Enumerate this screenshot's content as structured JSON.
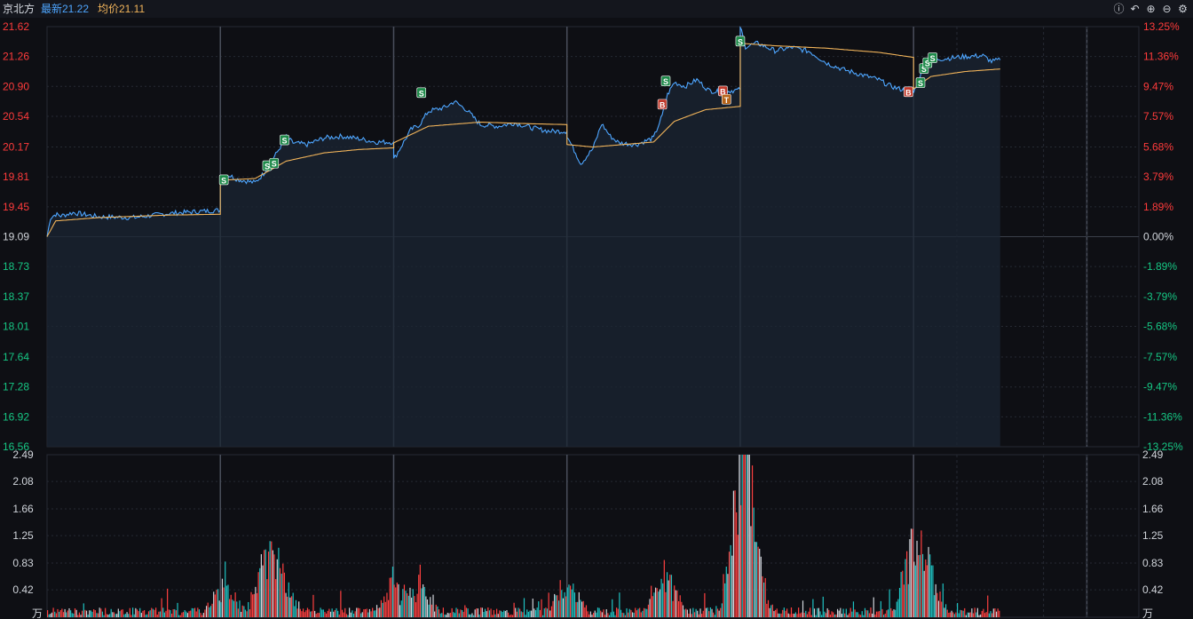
{
  "header": {
    "stock_name": "京北方",
    "latest_label": "最新21.22",
    "avg_label": "均价21.11"
  },
  "toolbar": [
    {
      "name": "info-icon",
      "glyph": "ⓘ"
    },
    {
      "name": "undo-icon",
      "glyph": "↶"
    },
    {
      "name": "zoom-in-icon",
      "glyph": "⊕"
    },
    {
      "name": "zoom-out-icon",
      "glyph": "⊖"
    },
    {
      "name": "gear-icon",
      "glyph": "⚙"
    }
  ],
  "colors": {
    "price_line": "#4ea6ff",
    "avg_line": "#f0b35a",
    "up": "#ff3b3b",
    "down": "#16c784",
    "flat": "#d0d4da",
    "volume_up": "#ff4040",
    "volume_down": "#1fc2c2",
    "grid": "#262a33",
    "buy_marker": "#c0392b",
    "sell_marker": "#1e8a4a",
    "t_marker": "#b5641a"
  },
  "chart_data": {
    "type": "line",
    "reference_price": 19.09,
    "price_axis": {
      "ylim": [
        16.56,
        21.62
      ],
      "ticks": [
        21.62,
        21.26,
        20.9,
        20.54,
        20.17,
        19.81,
        19.45,
        19.09,
        18.73,
        18.37,
        18.01,
        17.64,
        17.28,
        16.92,
        16.56
      ],
      "tick_labels": [
        "21.62",
        "21.26",
        "20.90",
        "20.54",
        "20.17",
        "19.81",
        "19.45",
        "19.09",
        "18.73",
        "18.37",
        "18.01",
        "17.64",
        "17.28",
        "16.92",
        "16.56"
      ]
    },
    "pct_axis": {
      "tick_labels": [
        "13.25%",
        "11.36%",
        "9.47%",
        "7.57%",
        "5.68%",
        "3.79%",
        "1.89%",
        "0.00%",
        "-1.89%",
        "-3.79%",
        "-5.68%",
        "-7.57%",
        "-9.47%",
        "-11.36%",
        "-13.25%"
      ]
    },
    "volume_axis": {
      "ylim": [
        0,
        2.49
      ],
      "ticks": [
        2.49,
        2.08,
        1.66,
        1.25,
        0.83,
        0.42
      ],
      "tick_labels": [
        "2.49",
        "2.08",
        "1.66",
        "1.25",
        "0.83",
        "0.42"
      ],
      "unit_label": "万"
    },
    "days": 6,
    "total_days_slots": 6.3,
    "series": [
      {
        "name": "price",
        "points": [
          [
            0.0,
            19.09
          ],
          [
            0.02,
            19.32
          ],
          [
            0.05,
            19.36
          ],
          [
            0.08,
            19.34
          ],
          [
            0.15,
            19.38
          ],
          [
            0.3,
            19.33
          ],
          [
            0.5,
            19.32
          ],
          [
            0.7,
            19.37
          ],
          [
            0.85,
            19.39
          ],
          [
            1.0,
            19.41
          ],
          [
            1.0,
            19.75
          ],
          [
            1.05,
            19.83
          ],
          [
            1.1,
            19.78
          ],
          [
            1.2,
            19.74
          ],
          [
            1.25,
            19.85
          ],
          [
            1.28,
            19.96
          ],
          [
            1.32,
            20.08
          ],
          [
            1.38,
            20.29
          ],
          [
            1.42,
            20.22
          ],
          [
            1.5,
            20.2
          ],
          [
            1.6,
            20.28
          ],
          [
            1.7,
            20.3
          ],
          [
            1.8,
            20.27
          ],
          [
            1.9,
            20.23
          ],
          [
            2.0,
            20.23
          ],
          [
            2.0,
            20.02
          ],
          [
            2.05,
            20.2
          ],
          [
            2.1,
            20.38
          ],
          [
            2.15,
            20.44
          ],
          [
            2.2,
            20.6
          ],
          [
            2.3,
            20.65
          ],
          [
            2.35,
            20.72
          ],
          [
            2.42,
            20.62
          ],
          [
            2.5,
            20.44
          ],
          [
            2.6,
            20.42
          ],
          [
            2.7,
            20.46
          ],
          [
            2.8,
            20.4
          ],
          [
            2.9,
            20.36
          ],
          [
            3.0,
            20.36
          ],
          [
            3.0,
            20.3
          ],
          [
            3.05,
            20.1
          ],
          [
            3.08,
            19.97
          ],
          [
            3.15,
            20.15
          ],
          [
            3.2,
            20.45
          ],
          [
            3.25,
            20.3
          ],
          [
            3.3,
            20.22
          ],
          [
            3.4,
            20.2
          ],
          [
            3.5,
            20.28
          ],
          [
            3.55,
            20.55
          ],
          [
            3.58,
            20.8
          ],
          [
            3.62,
            20.95
          ],
          [
            3.68,
            20.9
          ],
          [
            3.75,
            20.98
          ],
          [
            3.82,
            20.85
          ],
          [
            3.9,
            20.83
          ],
          [
            3.95,
            20.85
          ],
          [
            4.0,
            20.86
          ],
          [
            4.0,
            21.62
          ],
          [
            4.03,
            21.38
          ],
          [
            4.1,
            21.42
          ],
          [
            4.2,
            21.33
          ],
          [
            4.3,
            21.37
          ],
          [
            4.4,
            21.32
          ],
          [
            4.5,
            21.18
          ],
          [
            4.6,
            21.1
          ],
          [
            4.7,
            21.04
          ],
          [
            4.8,
            20.98
          ],
          [
            4.85,
            20.92
          ],
          [
            4.9,
            20.88
          ],
          [
            4.98,
            20.84
          ],
          [
            5.0,
            20.84
          ],
          [
            5.0,
            20.82
          ],
          [
            5.03,
            21.0
          ],
          [
            5.07,
            21.18
          ],
          [
            5.1,
            21.22
          ],
          [
            5.2,
            21.24
          ],
          [
            5.3,
            21.26
          ],
          [
            5.4,
            21.27
          ],
          [
            5.45,
            21.2
          ],
          [
            5.5,
            21.22
          ]
        ]
      },
      {
        "name": "avg",
        "points": [
          [
            0.0,
            19.09
          ],
          [
            0.05,
            19.28
          ],
          [
            0.3,
            19.32
          ],
          [
            0.7,
            19.35
          ],
          [
            1.0,
            19.36
          ],
          [
            1.0,
            19.77
          ],
          [
            1.2,
            19.79
          ],
          [
            1.38,
            20.0
          ],
          [
            1.6,
            20.1
          ],
          [
            1.8,
            20.14
          ],
          [
            2.0,
            20.16
          ],
          [
            2.0,
            20.22
          ],
          [
            2.2,
            20.42
          ],
          [
            2.5,
            20.47
          ],
          [
            2.8,
            20.45
          ],
          [
            3.0,
            20.44
          ],
          [
            3.0,
            20.2
          ],
          [
            3.15,
            20.17
          ],
          [
            3.5,
            20.23
          ],
          [
            3.62,
            20.48
          ],
          [
            3.8,
            20.62
          ],
          [
            4.0,
            20.66
          ],
          [
            4.0,
            21.42
          ],
          [
            4.2,
            21.39
          ],
          [
            4.5,
            21.36
          ],
          [
            4.8,
            21.31
          ],
          [
            5.0,
            21.25
          ],
          [
            5.0,
            20.87
          ],
          [
            5.1,
            21.02
          ],
          [
            5.3,
            21.08
          ],
          [
            5.5,
            21.11
          ]
        ]
      }
    ],
    "markers": [
      {
        "x": 1.02,
        "y": 19.77,
        "label": "S",
        "kind": "sell"
      },
      {
        "x": 1.27,
        "y": 19.94,
        "label": "S",
        "kind": "sell"
      },
      {
        "x": 1.31,
        "y": 19.97,
        "label": "S",
        "kind": "sell"
      },
      {
        "x": 1.37,
        "y": 20.25,
        "label": "S",
        "kind": "sell"
      },
      {
        "x": 2.16,
        "y": 20.82,
        "label": "S",
        "kind": "sell"
      },
      {
        "x": 3.55,
        "y": 20.68,
        "label": "B",
        "kind": "buy"
      },
      {
        "x": 3.57,
        "y": 20.96,
        "label": "S",
        "kind": "sell"
      },
      {
        "x": 3.9,
        "y": 20.84,
        "label": "B",
        "kind": "buy"
      },
      {
        "x": 3.92,
        "y": 20.74,
        "label": "T",
        "kind": "t"
      },
      {
        "x": 4.0,
        "y": 21.44,
        "label": "S",
        "kind": "sell"
      },
      {
        "x": 4.97,
        "y": 20.83,
        "label": "B",
        "kind": "buy"
      },
      {
        "x": 5.04,
        "y": 20.94,
        "label": "S",
        "kind": "sell"
      },
      {
        "x": 5.06,
        "y": 21.11,
        "label": "S",
        "kind": "sell"
      },
      {
        "x": 5.08,
        "y": 21.18,
        "label": "S",
        "kind": "sell"
      },
      {
        "x": 5.11,
        "y": 21.24,
        "label": "S",
        "kind": "sell"
      }
    ],
    "volume_peaks": [
      {
        "x": 1.02,
        "v": 0.55
      },
      {
        "x": 1.26,
        "v": 1.1
      },
      {
        "x": 1.35,
        "v": 0.7
      },
      {
        "x": 2.0,
        "v": 0.62
      },
      {
        "x": 2.15,
        "v": 0.6
      },
      {
        "x": 3.0,
        "v": 0.62
      },
      {
        "x": 3.57,
        "v": 0.85
      },
      {
        "x": 4.0,
        "v": 2.49
      },
      {
        "x": 4.03,
        "v": 1.45
      },
      {
        "x": 4.08,
        "v": 0.8
      },
      {
        "x": 5.0,
        "v": 1.52
      },
      {
        "x": 5.08,
        "v": 0.8
      }
    ]
  }
}
